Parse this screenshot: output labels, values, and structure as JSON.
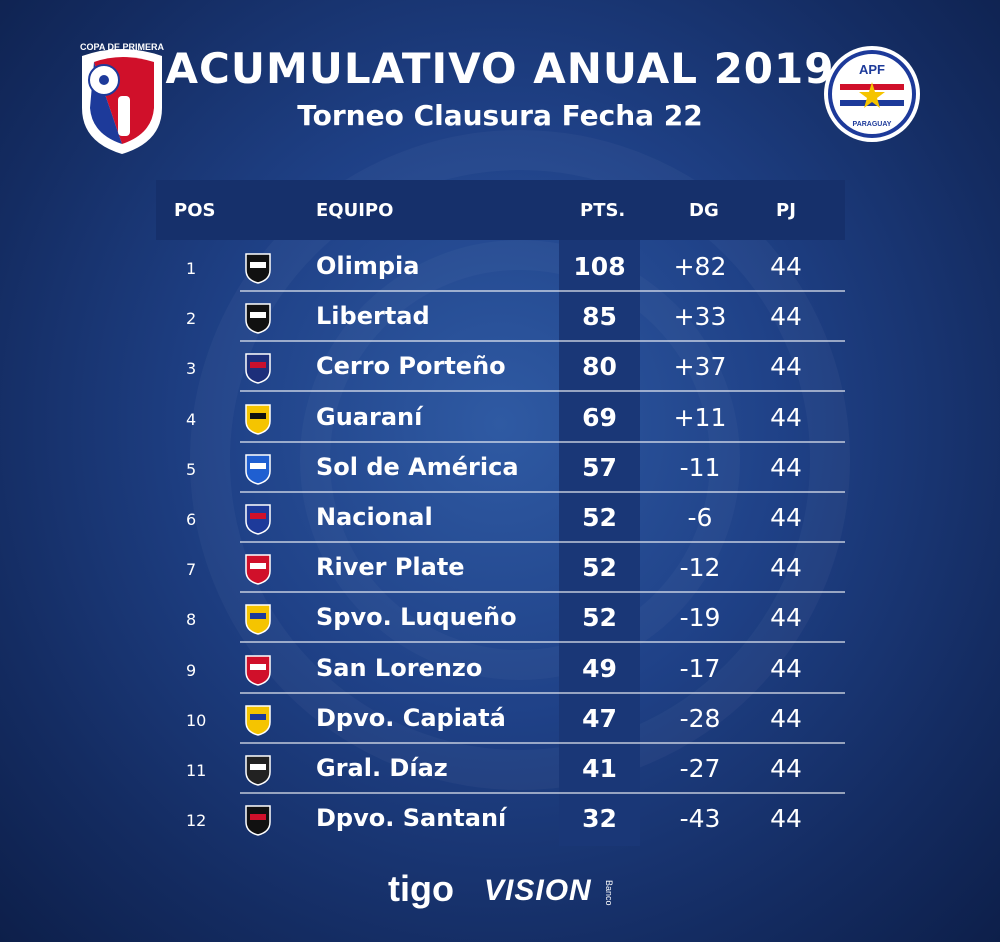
{
  "header": {
    "title": "ACUMULATIVO ANUAL 2019",
    "subtitle": "Torneo Clausura Fecha 22"
  },
  "logos": {
    "left_text": "COPA DE PRIMERA",
    "right_text": "APF",
    "right_subtext": "PARAGUAY"
  },
  "columns": {
    "pos": "POS",
    "team": "EQUIPO",
    "pts": "PTS.",
    "dg": "DG",
    "pj": "PJ"
  },
  "rows": [
    {
      "pos": "1",
      "team": "Olimpia",
      "pts": "108",
      "dg": "+82",
      "pj": "44",
      "crest": "olimpia-crest",
      "colors": [
        "#111111",
        "#ffffff"
      ]
    },
    {
      "pos": "2",
      "team": "Libertad",
      "pts": "85",
      "dg": "+33",
      "pj": "44",
      "crest": "libertad-crest",
      "colors": [
        "#111111",
        "#ffffff"
      ]
    },
    {
      "pos": "3",
      "team": "Cerro Porteño",
      "pts": "80",
      "dg": "+37",
      "pj": "44",
      "crest": "cerro-porteno-crest",
      "colors": [
        "#1d2f7a",
        "#c8102e"
      ]
    },
    {
      "pos": "4",
      "team": "Guaraní",
      "pts": "69",
      "dg": "+11",
      "pj": "44",
      "crest": "guarani-crest",
      "colors": [
        "#f5c400",
        "#111111"
      ]
    },
    {
      "pos": "5",
      "team": "Sol de América",
      "pts": "57",
      "dg": "-11",
      "pj": "44",
      "crest": "sol-de-america-crest",
      "colors": [
        "#1f5fd1",
        "#ffffff"
      ]
    },
    {
      "pos": "6",
      "team": "Nacional",
      "pts": "52",
      "dg": "-6",
      "pj": "44",
      "crest": "nacional-crest",
      "colors": [
        "#1d3a9a",
        "#d0102a"
      ]
    },
    {
      "pos": "7",
      "team": "River Plate",
      "pts": "52",
      "dg": "-12",
      "pj": "44",
      "crest": "river-plate-crest",
      "colors": [
        "#d0102a",
        "#ffffff"
      ]
    },
    {
      "pos": "8",
      "team": "Spvo. Luqueño",
      "pts": "52",
      "dg": "-19",
      "pj": "44",
      "crest": "luqueno-crest",
      "colors": [
        "#f5c400",
        "#1d3a9a"
      ]
    },
    {
      "pos": "9",
      "team": "San Lorenzo",
      "pts": "49",
      "dg": "-17",
      "pj": "44",
      "crest": "san-lorenzo-crest",
      "colors": [
        "#d0102a",
        "#ffffff"
      ]
    },
    {
      "pos": "10",
      "team": "Dpvo. Capiatá",
      "pts": "47",
      "dg": "-28",
      "pj": "44",
      "crest": "capiata-crest",
      "colors": [
        "#f5c400",
        "#1d3a9a"
      ]
    },
    {
      "pos": "11",
      "team": "Gral. Díaz",
      "pts": "41",
      "dg": "-27",
      "pj": "44",
      "crest": "general-diaz-crest",
      "colors": [
        "#222222",
        "#ffffff"
      ]
    },
    {
      "pos": "12",
      "team": "Dpvo. Santaní",
      "pts": "32",
      "dg": "-43",
      "pj": "44",
      "crest": "santani-crest",
      "colors": [
        "#111111",
        "#d0102a"
      ]
    }
  ],
  "sponsors": {
    "tigo": "tigo",
    "vision": "VISION",
    "vision_sub": "Banco"
  },
  "colors": {
    "background": "#1f4187",
    "header_bar": "#16306b",
    "pts_column": "#1a3777"
  }
}
